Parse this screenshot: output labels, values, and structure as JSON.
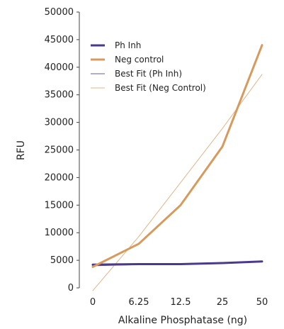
{
  "chart_data": {
    "type": "line",
    "xlabel": "Alkaline Phosphatase (ng)",
    "ylabel": "RFU",
    "categories": [
      "0",
      "6.25",
      "12.5",
      "25",
      "50"
    ],
    "ylim": [
      0,
      50000
    ],
    "yticks": [
      0,
      5000,
      10000,
      15000,
      20000,
      25000,
      30000,
      35000,
      40000,
      45000,
      50000
    ],
    "grid": false,
    "legend_position": "top-left",
    "series": [
      {
        "name": "Ph Inh",
        "kind": "data",
        "color": "#4b3a8c",
        "values": [
          4200,
          4300,
          4300,
          4500,
          4800
        ]
      },
      {
        "name": "Neg control",
        "kind": "data",
        "color": "#d89a5c",
        "values": [
          3800,
          8000,
          15000,
          25600,
          44000
        ]
      },
      {
        "name": "Best Fit (Ph Inh)",
        "kind": "fit",
        "color": "#6a5aa8",
        "values": [
          4000,
          4200,
          4400,
          4600,
          4800
        ]
      },
      {
        "name": "Best Fit (Neg Control)",
        "kind": "fit",
        "color": "#e1b489",
        "values": [
          -500,
          9300,
          19100,
          28900,
          38700
        ]
      }
    ]
  }
}
